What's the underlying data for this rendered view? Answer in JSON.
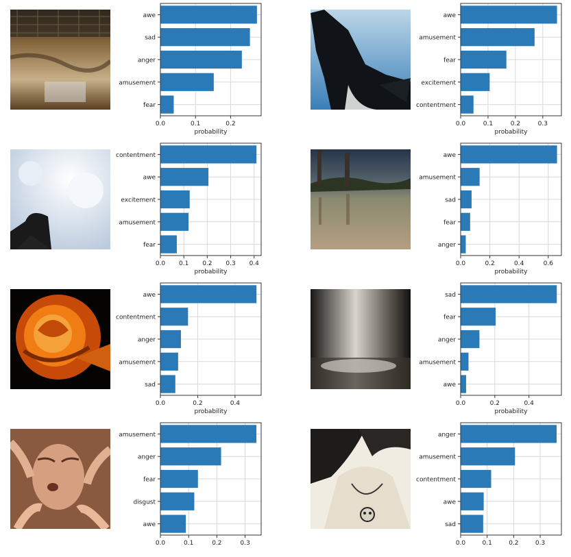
{
  "chart_data": [
    {
      "type": "bar",
      "orientation": "horizontal",
      "image": "textured-sepia-wall-photo",
      "categories": [
        "awe",
        "sad",
        "anger",
        "amusement",
        "fear"
      ],
      "values": [
        0.275,
        0.255,
        0.232,
        0.152,
        0.038
      ],
      "xlabel": "probability",
      "xlim": [
        0,
        0.287
      ],
      "xticks": [
        "0.0",
        "0.1",
        "0.2"
      ],
      "xtick_values": [
        0,
        0.1,
        0.2
      ],
      "grid": true,
      "bar_color": "#2a7ab8"
    },
    {
      "type": "bar",
      "orientation": "horizontal",
      "image": "orca-whale-photo",
      "categories": [
        "awe",
        "amusement",
        "fear",
        "excitement",
        "contentment"
      ],
      "values": [
        0.352,
        0.27,
        0.167,
        0.106,
        0.047
      ],
      "xlabel": "probability",
      "xlim": [
        0,
        0.368
      ],
      "xticks": [
        "0.0",
        "0.1",
        "0.2",
        "0.3"
      ],
      "xtick_values": [
        0,
        0.1,
        0.2,
        0.3
      ],
      "grid": true,
      "bar_color": "#2a7ab8"
    },
    {
      "type": "bar",
      "orientation": "horizontal",
      "image": "laughing-woman-sky-photo",
      "categories": [
        "contentment",
        "awe",
        "excitement",
        "amusement",
        "fear"
      ],
      "values": [
        0.41,
        0.205,
        0.125,
        0.12,
        0.07
      ],
      "xlabel": "probability",
      "xlim": [
        0,
        0.43
      ],
      "xticks": [
        "0.0",
        "0.1",
        "0.2",
        "0.3",
        "0.4"
      ],
      "xtick_values": [
        0,
        0.1,
        0.2,
        0.3,
        0.4
      ],
      "grid": true,
      "bar_color": "#2a7ab8"
    },
    {
      "type": "bar",
      "orientation": "horizontal",
      "image": "people-wading-shore-photo",
      "categories": [
        "awe",
        "amusement",
        "sad",
        "fear",
        "anger"
      ],
      "values": [
        0.66,
        0.13,
        0.075,
        0.065,
        0.035
      ],
      "xlabel": "probability",
      "xlim": [
        0,
        0.69
      ],
      "xticks": [
        "0.0",
        "0.2",
        "0.4",
        "0.6"
      ],
      "xtick_values": [
        0,
        0.2,
        0.4,
        0.6
      ],
      "grid": true,
      "bar_color": "#2a7ab8"
    },
    {
      "type": "bar",
      "orientation": "horizontal",
      "image": "orange-rose-photo",
      "categories": [
        "awe",
        "contentment",
        "anger",
        "amusement",
        "sad"
      ],
      "values": [
        0.515,
        0.148,
        0.11,
        0.095,
        0.08
      ],
      "xlabel": "probability",
      "xlim": [
        0,
        0.54
      ],
      "xticks": [
        "0.0",
        "0.2",
        "0.4"
      ],
      "xtick_values": [
        0,
        0.2,
        0.4
      ],
      "grid": true,
      "bar_color": "#2a7ab8"
    },
    {
      "type": "bar",
      "orientation": "horizontal",
      "image": "dim-room-floor-photo",
      "categories": [
        "sad",
        "fear",
        "anger",
        "amusement",
        "awe"
      ],
      "values": [
        0.563,
        0.205,
        0.11,
        0.046,
        0.032
      ],
      "xlabel": "probability",
      "xlim": [
        0,
        0.59
      ],
      "xticks": [
        "0.0",
        "0.2",
        "0.4"
      ],
      "xtick_values": [
        0,
        0.2,
        0.4
      ],
      "grid": true,
      "bar_color": "#2a7ab8"
    },
    {
      "type": "bar",
      "orientation": "horizontal",
      "image": "face-surrounded-by-hands-photo",
      "categories": [
        "amusement",
        "anger",
        "fear",
        "disgust",
        "awe"
      ],
      "values": [
        0.34,
        0.215,
        0.133,
        0.12,
        0.09
      ],
      "xlabel": "",
      "xlim": [
        0,
        0.357
      ],
      "xticks": [
        "0.0",
        "0.1",
        "0.2",
        "0.3"
      ],
      "xtick_values": [
        0,
        0.1,
        0.2,
        0.3
      ],
      "grid": true,
      "bar_color": "#2a7ab8"
    },
    {
      "type": "bar",
      "orientation": "horizontal",
      "image": "woman-with-skull-necklace-photo",
      "categories": [
        "anger",
        "amusement",
        "contentment",
        "awe",
        "sad"
      ],
      "values": [
        0.362,
        0.205,
        0.115,
        0.087,
        0.085
      ],
      "xlabel": "",
      "xlim": [
        0,
        0.38
      ],
      "xticks": [
        "0.0",
        "0.1",
        "0.2",
        "0.3"
      ],
      "xtick_values": [
        0,
        0.1,
        0.2,
        0.3
      ],
      "grid": true,
      "bar_color": "#2a7ab8"
    }
  ]
}
